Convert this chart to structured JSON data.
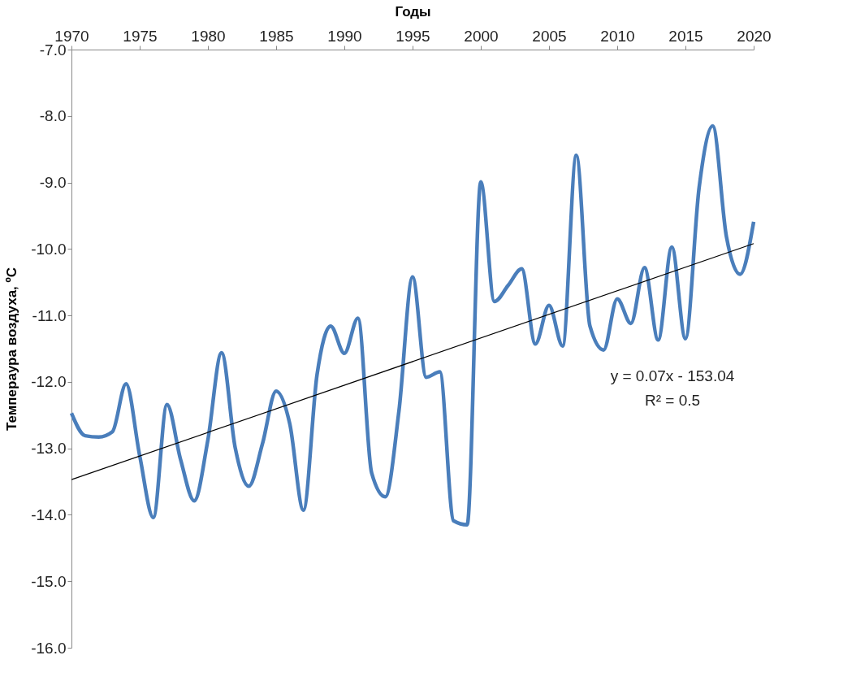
{
  "chart_data": {
    "type": "line",
    "xlabel": "Годы",
    "ylabel": "Темпераура воздуха, ºС",
    "x": [
      1970,
      1971,
      1972,
      1973,
      1974,
      1975,
      1976,
      1977,
      1978,
      1979,
      1980,
      1981,
      1982,
      1983,
      1984,
      1985,
      1986,
      1987,
      1988,
      1989,
      1990,
      1991,
      1992,
      1993,
      1994,
      1995,
      1996,
      1997,
      1998,
      1999,
      2000,
      2001,
      2002,
      2003,
      2004,
      2005,
      2006,
      2007,
      2008,
      2009,
      2010,
      2011,
      2012,
      2013,
      2014,
      2015,
      2016,
      2017,
      2018,
      2019,
      2020
    ],
    "series": [
      {
        "color": "#4a7ebb",
        "values": [
          -12.47,
          -12.81,
          -12.83,
          -12.75,
          -12.03,
          -13.11,
          -14.04,
          -12.34,
          -13.17,
          -13.79,
          -12.87,
          -11.56,
          -12.99,
          -13.57,
          -12.93,
          -12.14,
          -12.63,
          -13.93,
          -11.89,
          -11.16,
          -11.57,
          -11.04,
          -13.37,
          -13.73,
          -12.44,
          -10.42,
          -11.93,
          -11.85,
          -14.09,
          -14.15,
          -8.99,
          -10.79,
          -10.55,
          -10.3,
          -11.43,
          -10.85,
          -11.46,
          -8.59,
          -11.16,
          -11.52,
          -10.75,
          -11.12,
          -10.28,
          -11.37,
          -9.97,
          -11.35,
          -9.08,
          -8.15,
          -9.81,
          -10.38,
          -9.59
        ]
      },
      {
        "type": "line",
        "color": "#000000",
        "x": [
          1970,
          2020
        ],
        "values": [
          -13.47,
          -9.92
        ]
      }
    ],
    "xlim": [
      1970,
      2020
    ],
    "xticks": [
      1970,
      1975,
      1980,
      1985,
      1990,
      1995,
      2000,
      2005,
      2010,
      2015,
      2020
    ],
    "ylim": [
      -16,
      -7
    ],
    "yticks": [
      {
        "value": -16,
        "label": "-16.0"
      },
      {
        "value": -15,
        "label": "-15.0"
      },
      {
        "value": -14,
        "label": "-14.0"
      },
      {
        "value": -13,
        "label": "-13.0"
      },
      {
        "value": -12,
        "label": "-12.0"
      },
      {
        "value": -11,
        "label": "-11.0"
      },
      {
        "value": -10,
        "label": "-10.0"
      },
      {
        "value": -9,
        "label": "-9.0"
      },
      {
        "value": -8,
        "label": "-8.0"
      },
      {
        "value": -7,
        "label": "-7.0"
      }
    ],
    "annotations": [
      "y = 0.07x - 153.04",
      "R² = 0.5"
    ],
    "grid": false
  }
}
